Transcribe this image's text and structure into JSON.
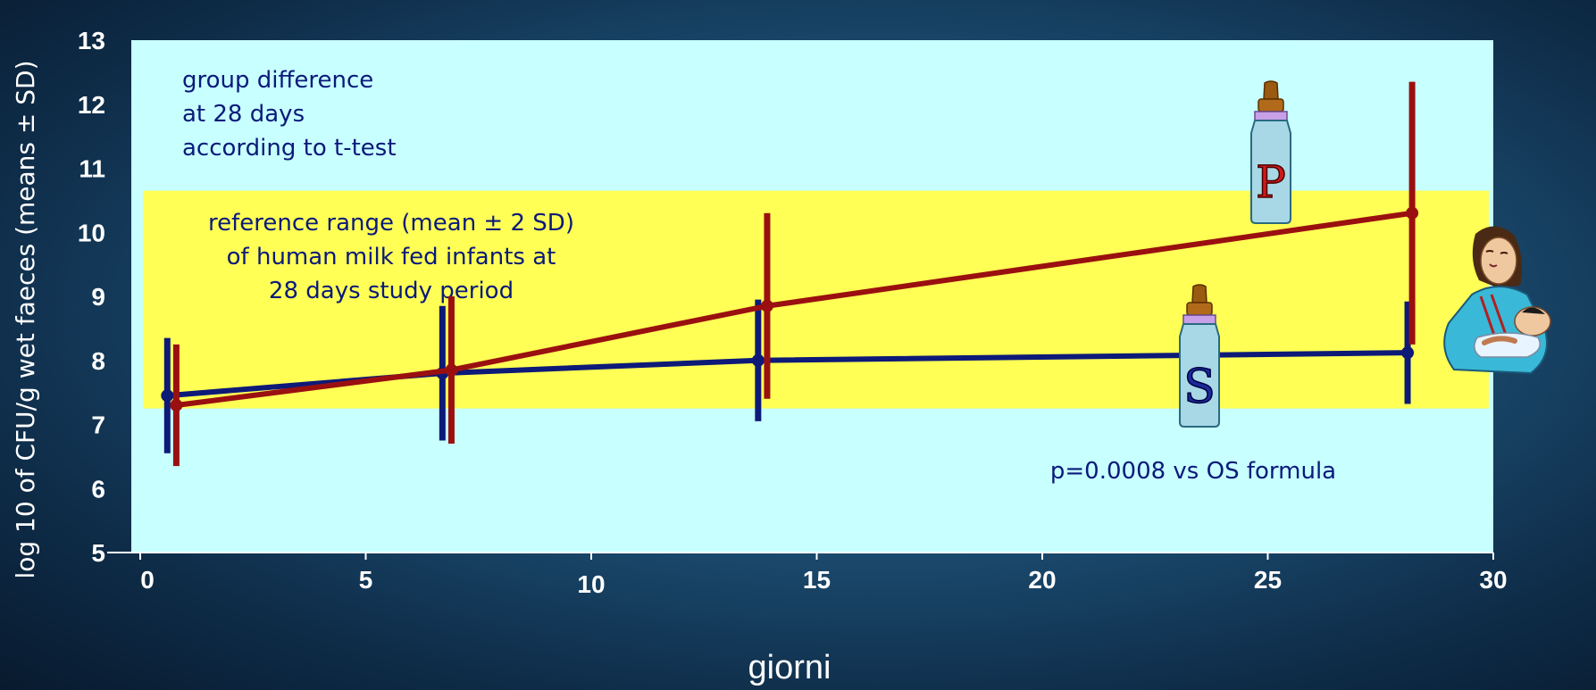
{
  "chart_data": {
    "type": "line",
    "title": "",
    "xlabel": "giorni",
    "ylabel": "log 10 of CFU/g wet faeces (means ± SD)",
    "xlim": [
      0,
      30
    ],
    "ylim": [
      5,
      13
    ],
    "x_ticks": [
      0,
      5,
      10,
      15,
      20,
      25,
      30
    ],
    "y_ticks": [
      5,
      6,
      7,
      8,
      9,
      10,
      11,
      12,
      13
    ],
    "grid": false,
    "reference_band": {
      "low": 7.25,
      "high": 10.65,
      "color": "#ffff55",
      "label": [
        "reference range (mean ± 2 SD)",
        "of human milk fed infants at",
        "28 days study period"
      ]
    },
    "series": [
      {
        "marker": "S",
        "color": "#0d1a78",
        "x": [
          0.6,
          6.7,
          13.7,
          28.1
        ],
        "y": [
          7.45,
          7.8,
          8.0,
          8.12
        ],
        "sd": [
          0.9,
          1.05,
          0.95,
          0.8
        ]
      },
      {
        "marker": "P",
        "color": "#9a1010",
        "x": [
          0.8,
          6.9,
          13.9,
          28.2
        ],
        "y": [
          7.3,
          7.85,
          8.85,
          10.3
        ],
        "sd": [
          0.95,
          1.15,
          1.45,
          2.05
        ]
      }
    ],
    "annotations": {
      "group_difference": [
        "group difference",
        "at 28 days",
        "according to t-test"
      ],
      "p_value": "p=0.0008 vs OS formula"
    },
    "colors": {
      "plot_background": "#c8ffff",
      "band": "#ffff55"
    }
  }
}
